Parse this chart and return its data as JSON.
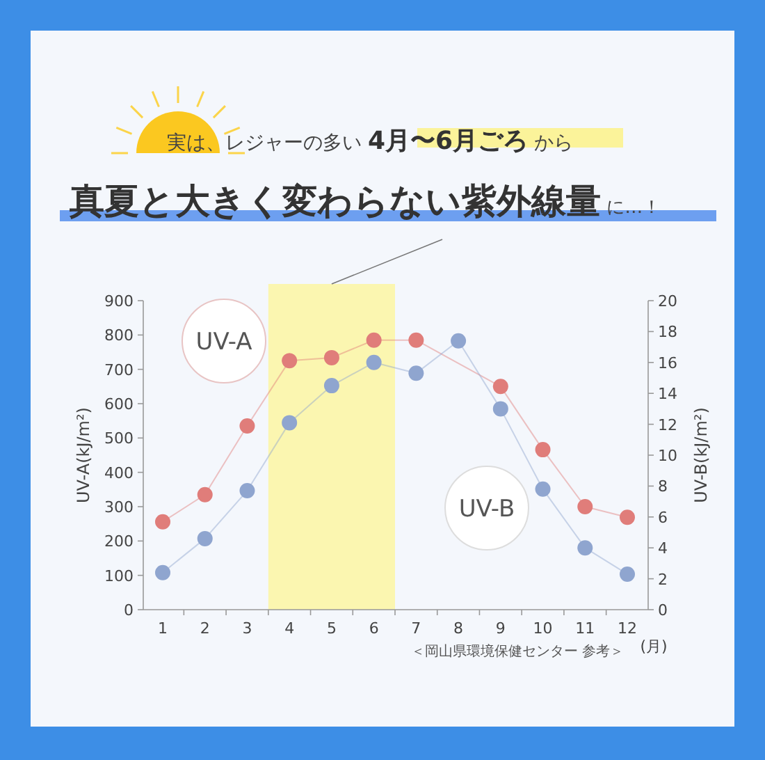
{
  "chart_data": {
    "type": "line",
    "title": "実は、レジャーの多い **4月〜6月ごろ** から",
    "subtitle": "**真夏と大きく変わらない紫外線量** に…！",
    "xlabel": "(月)",
    "ylabel": "UV-A(kJ/m²)",
    "y2label": "UV-B(kJ/m²)",
    "categories": [
      "1",
      "2",
      "3",
      "4",
      "5",
      "6",
      "7",
      "8",
      "9",
      "10",
      "11",
      "12"
    ],
    "series": [
      {
        "color": "#e07d7a",
        "values": [
          256,
          335,
          535,
          725,
          734,
          785,
          785,
          null,
          650,
          466,
          300,
          269
        ]
      },
      {
        "color": "#8fa5cf",
        "axis": "y2",
        "values": [
          2.4,
          4.6,
          7.7,
          12.1,
          14.5,
          16.0,
          15.3,
          17.4,
          13.0,
          7.8,
          4.0,
          2.3
        ]
      }
    ],
    "ylim": [
      0,
      900
    ],
    "yticks": [
      0,
      100,
      200,
      300,
      400,
      500,
      600,
      700,
      800,
      900
    ],
    "y2lim": [
      0,
      20
    ],
    "y2ticks": [
      0,
      2,
      4,
      6,
      8,
      10,
      12,
      14,
      16,
      18,
      20
    ],
    "annotations": [
      "UV-A",
      "UV-B",
      "＜岡山県環境保健センター 参考＞"
    ],
    "marker": "circle",
    "line_style": "solid",
    "grid": false
  }
}
